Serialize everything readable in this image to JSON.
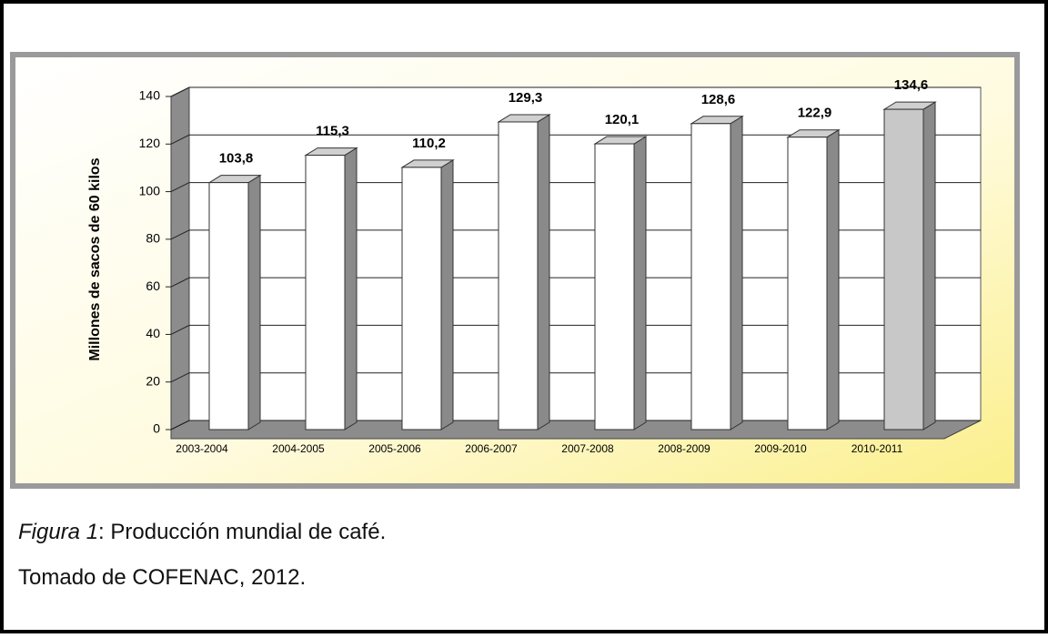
{
  "chart_data": {
    "type": "bar",
    "ylabel": "Millones de sacos de 60 kilos",
    "categories": [
      "2003-2004",
      "2004-2005",
      "2005-2006",
      "2006-2007",
      "2007-2008",
      "2008-2009",
      "2009-2010",
      "2010-2011"
    ],
    "values": [
      103.8,
      115.3,
      110.2,
      129.3,
      120.1,
      128.6,
      122.9,
      134.6
    ],
    "value_labels": [
      "103,8",
      "115,3",
      "110,2",
      "129,3",
      "120,1",
      "128,6",
      "122,9",
      "134,6"
    ],
    "colors": [
      "#ffffff",
      "#ffffff",
      "#ffffff",
      "#ffffff",
      "#ffffff",
      "#ffffff",
      "#ffffff",
      "#c8c8c8"
    ],
    "ylim": [
      0,
      140
    ],
    "yticks": [
      0,
      20,
      40,
      60,
      80,
      100,
      120,
      140
    ],
    "grid": true
  },
  "caption": {
    "label": "Figura 1",
    "text": ": Producción mundial de café.",
    "source": "Tomado de COFENAC, 2012."
  }
}
